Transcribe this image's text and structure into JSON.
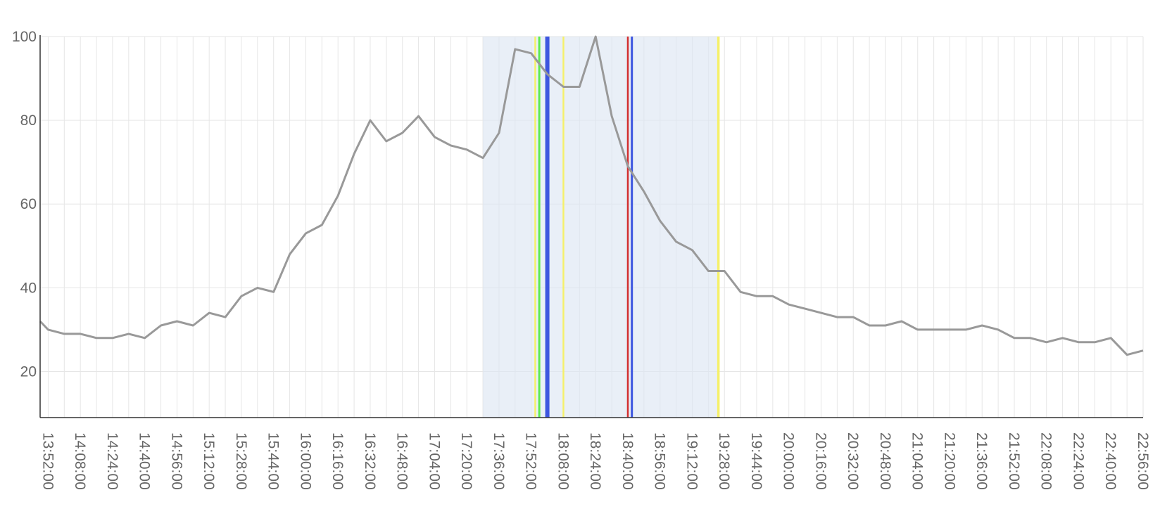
{
  "chart_data": {
    "type": "line",
    "title": "",
    "xlabel": "",
    "ylabel": "",
    "ylim": [
      9,
      100
    ],
    "yticks": [
      20,
      40,
      60,
      80,
      100
    ],
    "x_range": [
      "13:48:00",
      "22:56:00"
    ],
    "x_ticks": [
      "13:52:00",
      "14:08:00",
      "14:24:00",
      "14:40:00",
      "14:56:00",
      "15:12:00",
      "15:28:00",
      "15:44:00",
      "16:00:00",
      "16:16:00",
      "16:32:00",
      "16:48:00",
      "17:04:00",
      "17:20:00",
      "17:36:00",
      "17:52:00",
      "18:08:00",
      "18:24:00",
      "18:40:00",
      "18:56:00",
      "19:12:00",
      "19:28:00",
      "19:44:00",
      "20:00:00",
      "20:16:00",
      "20:32:00",
      "20:48:00",
      "21:04:00",
      "21:20:00",
      "21:36:00",
      "21:52:00",
      "22:08:00",
      "22:24:00",
      "22:40:00",
      "22:56:00"
    ],
    "grid": true,
    "series": [
      {
        "color": "#999999",
        "x": [
          "13:48:00",
          "13:52:00",
          "14:00:00",
          "14:08:00",
          "14:16:00",
          "14:24:00",
          "14:32:00",
          "14:40:00",
          "14:48:00",
          "14:56:00",
          "15:04:00",
          "15:12:00",
          "15:20:00",
          "15:28:00",
          "15:36:00",
          "15:44:00",
          "15:52:00",
          "16:00:00",
          "16:08:00",
          "16:16:00",
          "16:24:00",
          "16:32:00",
          "16:40:00",
          "16:48:00",
          "16:56:00",
          "17:04:00",
          "17:12:00",
          "17:20:00",
          "17:28:00",
          "17:36:00",
          "17:44:00",
          "17:52:00",
          "18:00:00",
          "18:08:00",
          "18:16:00",
          "18:24:00",
          "18:32:00",
          "18:40:00",
          "18:48:00",
          "18:56:00",
          "19:04:00",
          "19:12:00",
          "19:20:00",
          "19:28:00",
          "19:36:00",
          "19:44:00",
          "19:52:00",
          "20:00:00",
          "20:08:00",
          "20:16:00",
          "20:24:00",
          "20:32:00",
          "20:40:00",
          "20:48:00",
          "20:56:00",
          "21:04:00",
          "21:12:00",
          "21:20:00",
          "21:28:00",
          "21:36:00",
          "21:44:00",
          "21:52:00",
          "22:00:00",
          "22:08:00",
          "22:16:00",
          "22:24:00",
          "22:32:00",
          "22:40:00",
          "22:48:00",
          "22:56:00"
        ],
        "y": [
          32,
          30,
          29,
          29,
          28,
          28,
          29,
          28,
          31,
          32,
          31,
          34,
          33,
          38,
          40,
          39,
          48,
          53,
          55,
          62,
          72,
          80,
          75,
          77,
          81,
          76,
          74,
          73,
          71,
          77,
          97,
          96,
          91,
          88,
          88,
          100,
          81,
          69,
          63,
          56,
          51,
          49,
          44,
          44,
          39,
          38,
          38,
          36,
          35,
          34,
          33,
          33,
          31,
          31,
          32,
          30,
          30,
          30,
          30,
          31,
          30,
          28,
          28,
          27,
          28,
          27,
          27,
          28,
          24,
          25
        ]
      }
    ],
    "highlight_region": {
      "start": "17:28:00",
      "end": "19:25:00",
      "color": "#dde7f3"
    },
    "vertical_markers": [
      {
        "time": "17:54:00",
        "color": "#f5f06a",
        "width": 2.5
      },
      {
        "time": "17:56:00",
        "color": "#5bea4c",
        "width": 3
      },
      {
        "time": "18:00:00",
        "color": "#3d56e0",
        "width": 6
      },
      {
        "time": "18:08:00",
        "color": "#f5f06a",
        "width": 2.5
      },
      {
        "time": "18:40:00",
        "color": "#d32f2f",
        "width": 2.5
      },
      {
        "time": "18:42:00",
        "color": "#3d56e0",
        "width": 3
      },
      {
        "time": "19:25:00",
        "color": "#f5f06a",
        "width": 3.5
      }
    ]
  }
}
